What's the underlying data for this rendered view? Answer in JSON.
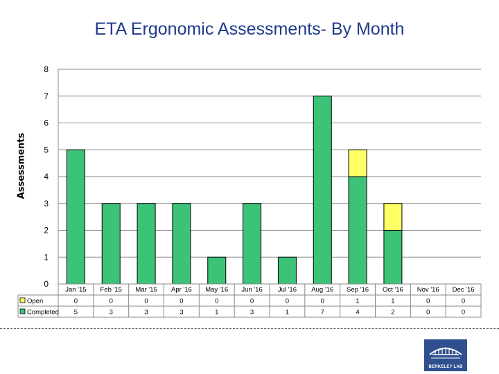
{
  "page": {
    "title": "ETA Ergonomic Assessments- By Month"
  },
  "chart_data": {
    "type": "bar",
    "stacked": true,
    "title": "ETA Ergonomic Assessments- By Month",
    "xlabel": "",
    "ylabel": "Assessments",
    "ylim": [
      0,
      8
    ],
    "yticks": [
      0,
      1,
      2,
      3,
      4,
      5,
      6,
      7,
      8
    ],
    "grid": true,
    "legend": "data-table-left",
    "categories": [
      "Jan '15",
      "Feb '15",
      "Mar '15",
      "Apr '16",
      "May '16",
      "Jun '16",
      "Jul '16",
      "Aug '16",
      "Sep '16",
      "Oct '16",
      "Nov '16",
      "Dec '16"
    ],
    "series": [
      {
        "name": "Completed",
        "color": "#3cc378",
        "values": [
          5,
          3,
          3,
          3,
          1,
          3,
          1,
          7,
          4,
          2,
          0,
          0
        ]
      },
      {
        "name": "Open",
        "color": "#ffff66",
        "values": [
          0,
          0,
          0,
          0,
          0,
          0,
          0,
          0,
          1,
          1,
          0,
          0
        ]
      }
    ]
  },
  "logo": {
    "text": "BERKELEY LAB"
  }
}
